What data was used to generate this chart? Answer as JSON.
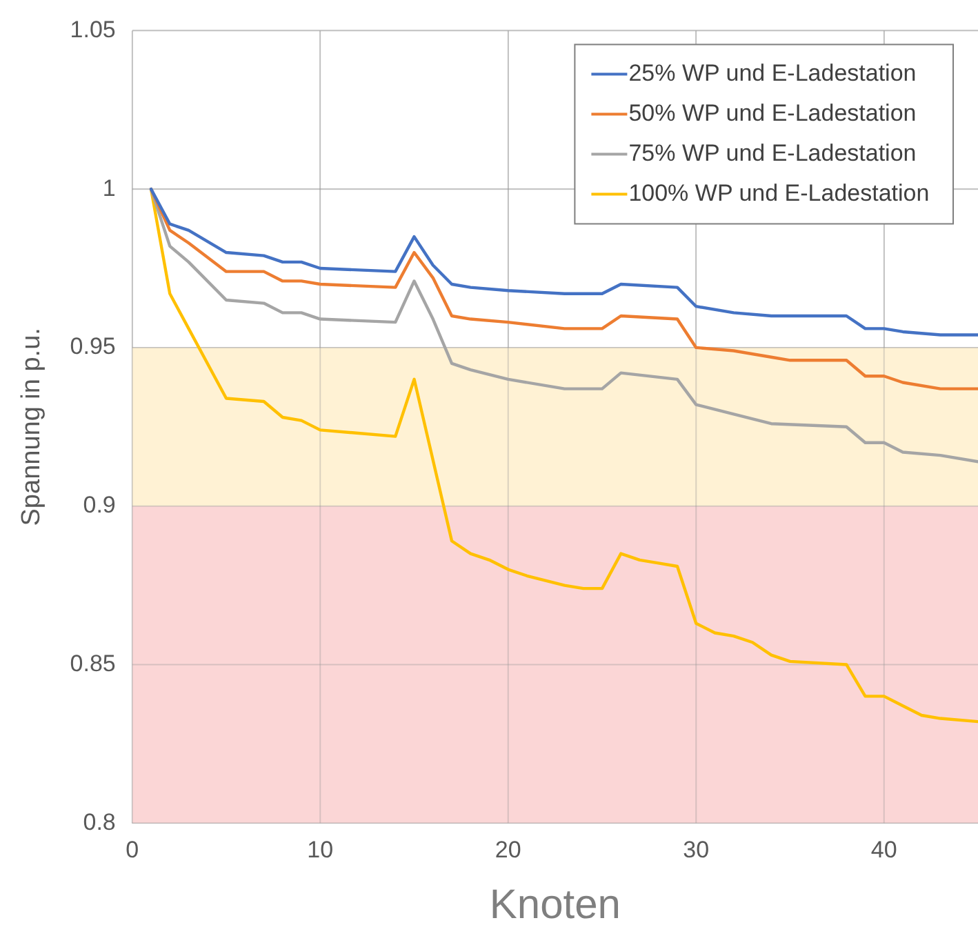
{
  "chart_data": {
    "type": "line",
    "xlabel": "Knoten",
    "ylabel": "Spannung in p.u.",
    "xlim": [
      0,
      45
    ],
    "xticks": [
      0,
      10,
      20,
      30,
      40
    ],
    "ylim": [
      0.8,
      1.05
    ],
    "yticks": [
      0.8,
      0.85,
      0.9,
      0.95,
      1,
      1.05
    ],
    "grid": true,
    "legend": "top right",
    "marker": "none",
    "line_style": "solid",
    "bands": [
      {
        "axis": "y",
        "from": 0.9,
        "to": 0.95,
        "color": "#fff2d4"
      },
      {
        "axis": "y",
        "from": 0.8,
        "to": 0.9,
        "color": "#fbd6d6"
      }
    ],
    "series": [
      {
        "name": "25% WP und E-Ladestation",
        "color": "#4472c4",
        "x": [
          1,
          2,
          3,
          5,
          7,
          8,
          9,
          10,
          14,
          15,
          16,
          17,
          18,
          20,
          23,
          25,
          26,
          29,
          30,
          32,
          34,
          38,
          39,
          40,
          41,
          43,
          45
        ],
        "values": [
          1.0,
          0.989,
          0.987,
          0.98,
          0.979,
          0.977,
          0.977,
          0.975,
          0.974,
          0.985,
          0.976,
          0.97,
          0.969,
          0.968,
          0.967,
          0.967,
          0.97,
          0.969,
          0.963,
          0.961,
          0.96,
          0.96,
          0.956,
          0.956,
          0.955,
          0.954,
          0.954
        ]
      },
      {
        "name": "50% WP und E-Ladestation",
        "color": "#ed7d31",
        "x": [
          1,
          2,
          3,
          5,
          7,
          8,
          9,
          10,
          14,
          15,
          16,
          17,
          18,
          20,
          23,
          25,
          26,
          29,
          30,
          32,
          34,
          35,
          38,
          39,
          40,
          41,
          43,
          45
        ],
        "values": [
          1.0,
          0.987,
          0.983,
          0.974,
          0.974,
          0.971,
          0.971,
          0.97,
          0.969,
          0.98,
          0.972,
          0.96,
          0.959,
          0.958,
          0.956,
          0.956,
          0.96,
          0.959,
          0.95,
          0.949,
          0.947,
          0.946,
          0.946,
          0.941,
          0.941,
          0.939,
          0.937,
          0.937
        ]
      },
      {
        "name": "75% WP und E-Ladestation",
        "color": "#a5a5a5",
        "x": [
          1,
          2,
          3,
          5,
          7,
          8,
          9,
          10,
          14,
          15,
          16,
          17,
          18,
          20,
          23,
          25,
          26,
          29,
          30,
          32,
          34,
          38,
          39,
          40,
          41,
          43,
          45
        ],
        "values": [
          1.0,
          0.982,
          0.977,
          0.965,
          0.964,
          0.961,
          0.961,
          0.959,
          0.958,
          0.971,
          0.959,
          0.945,
          0.943,
          0.94,
          0.937,
          0.937,
          0.942,
          0.94,
          0.932,
          0.929,
          0.926,
          0.925,
          0.92,
          0.92,
          0.917,
          0.916,
          0.914
        ]
      },
      {
        "name": "100% WP und E-Ladestation",
        "color": "#ffc000",
        "x": [
          1,
          2,
          3,
          5,
          7,
          8,
          9,
          10,
          14,
          15,
          17,
          18,
          19,
          20,
          21,
          23,
          24,
          25,
          26,
          27,
          28,
          29,
          30,
          31,
          32,
          33,
          34,
          35,
          38,
          39,
          40,
          41,
          42,
          43,
          45
        ],
        "values": [
          1.0,
          0.967,
          0.956,
          0.934,
          0.933,
          0.928,
          0.927,
          0.924,
          0.922,
          0.94,
          0.889,
          0.885,
          0.883,
          0.88,
          0.878,
          0.875,
          0.874,
          0.874,
          0.885,
          0.883,
          0.882,
          0.881,
          0.863,
          0.86,
          0.859,
          0.857,
          0.853,
          0.851,
          0.85,
          0.84,
          0.84,
          0.837,
          0.834,
          0.833,
          0.832
        ]
      }
    ]
  }
}
